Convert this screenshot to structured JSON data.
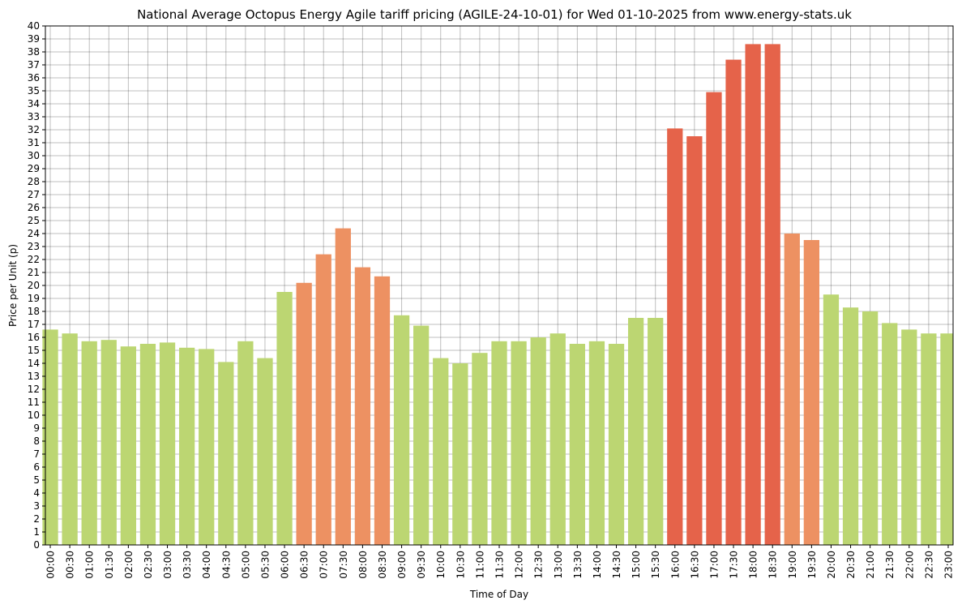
{
  "chart_data": {
    "type": "bar",
    "title": "National Average Octopus Energy Agile tariff pricing (AGILE-24-10-01) for Wed 01-10-2025 from www.energy-stats.uk",
    "xlabel": "Time of Day",
    "ylabel": "Price per Unit (p)",
    "ylim": [
      0,
      40
    ],
    "grid": true,
    "categories": [
      "00:00",
      "00:30",
      "01:00",
      "01:30",
      "02:00",
      "02:30",
      "03:00",
      "03:30",
      "04:00",
      "04:30",
      "05:00",
      "05:30",
      "06:00",
      "06:30",
      "07:00",
      "07:30",
      "08:00",
      "08:30",
      "09:00",
      "09:30",
      "10:00",
      "10:30",
      "11:00",
      "11:30",
      "12:00",
      "12:30",
      "13:00",
      "13:30",
      "14:00",
      "14:30",
      "15:00",
      "15:30",
      "16:00",
      "16:30",
      "17:00",
      "17:30",
      "18:00",
      "18:30",
      "19:00",
      "19:30",
      "20:00",
      "20:30",
      "21:00",
      "21:30",
      "22:00",
      "22:30",
      "23:00"
    ],
    "values": [
      16.6,
      16.3,
      15.7,
      15.8,
      15.3,
      15.5,
      15.6,
      15.2,
      15.1,
      14.1,
      15.7,
      14.4,
      19.5,
      20.2,
      22.4,
      24.4,
      21.4,
      20.7,
      17.7,
      16.9,
      14.4,
      14.0,
      14.8,
      15.7,
      15.7,
      16.0,
      16.3,
      15.5,
      15.7,
      15.5,
      17.5,
      17.5,
      32.1,
      31.5,
      34.9,
      37.4,
      38.6,
      38.6,
      24.0,
      23.5,
      19.3,
      18.3,
      18.0,
      17.1,
      16.6,
      16.3,
      16.3
    ],
    "color_bands": [
      {
        "name": "low",
        "color": "#bcd672"
      },
      {
        "name": "medium",
        "color": "#ed9162"
      },
      {
        "name": "high",
        "color": "#e5634a"
      }
    ]
  }
}
